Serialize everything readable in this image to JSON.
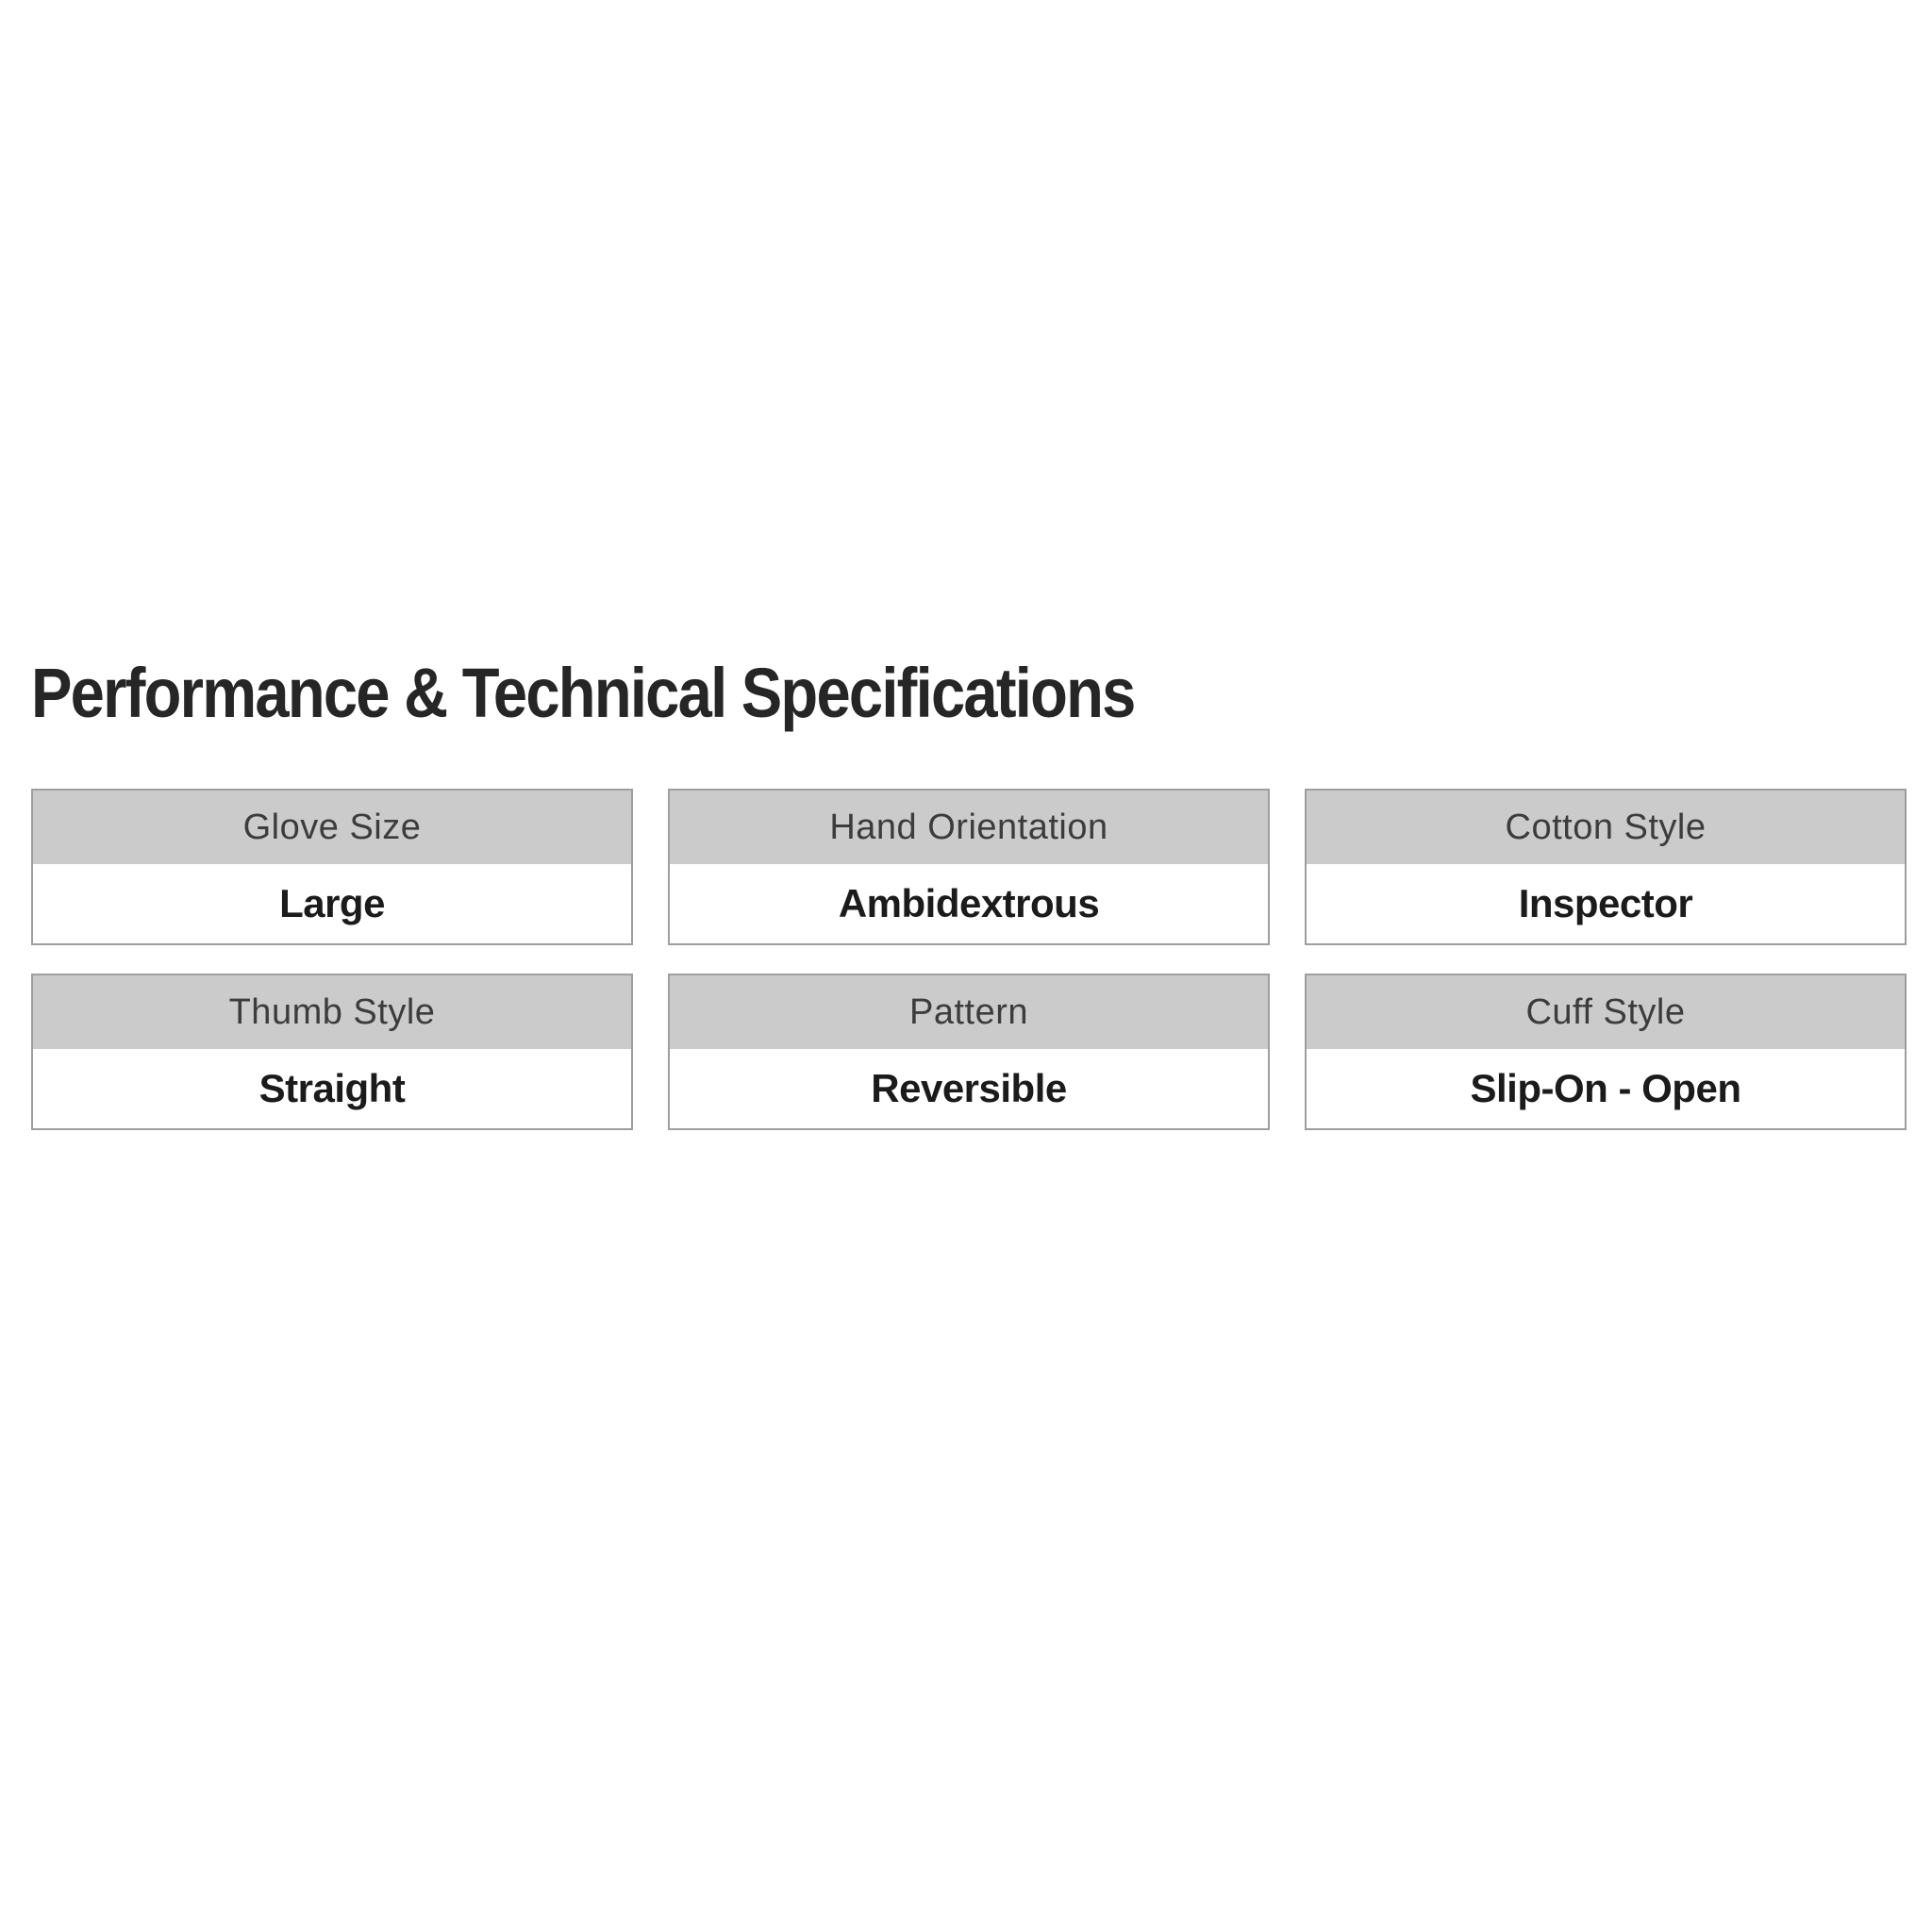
{
  "page": {
    "title": "Performance & Technical Specifications"
  },
  "specs": [
    {
      "label": "Glove Size",
      "value": "Large"
    },
    {
      "label": "Hand Orientation",
      "value": "Ambidextrous"
    },
    {
      "label": "Cotton Style",
      "value": "Inspector"
    },
    {
      "label": "Thumb Style",
      "value": "Straight"
    },
    {
      "label": "Pattern",
      "value": "Reversible"
    },
    {
      "label": "Cuff Style",
      "value": "Slip-On - Open"
    }
  ],
  "colors": {
    "header_bg": "#cbcbcb",
    "border": "#9e9e9e",
    "heading_text": "#262626",
    "label_text": "#3c3c3c",
    "value_text": "#1b1b1b",
    "page_bg": "#ffffff"
  }
}
